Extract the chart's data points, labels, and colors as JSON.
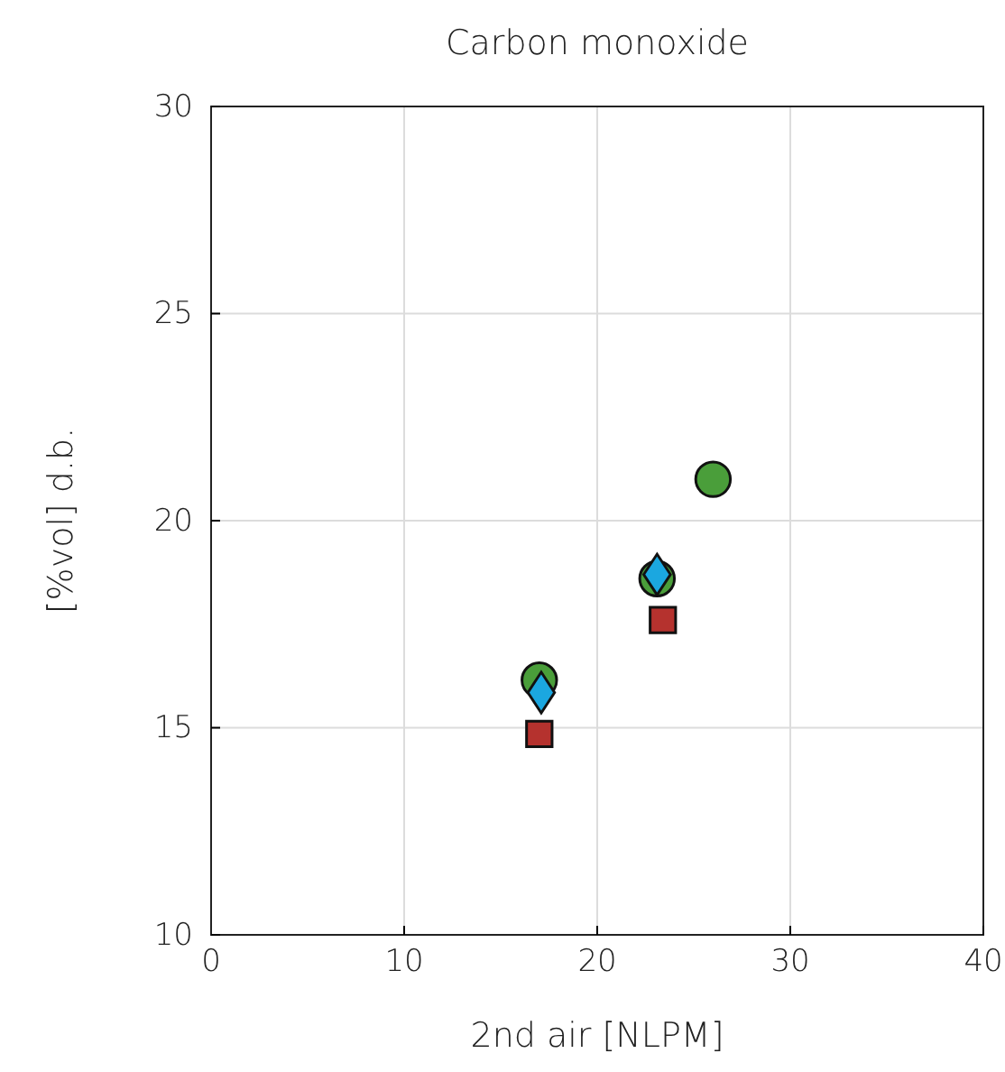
{
  "chart_data": {
    "type": "scatter",
    "title": "Carbon monoxide",
    "xlabel": "2nd air [NLPM]",
    "ylabel": "[%vol] d.b.",
    "xlim": [
      0,
      40
    ],
    "xticks": [
      0,
      10,
      20,
      30,
      40
    ],
    "ylim": [
      10,
      30
    ],
    "yticks": [
      10,
      15,
      20,
      25,
      30
    ],
    "grid": true,
    "series": [
      {
        "color": "#4a9e3a",
        "marker": "circle",
        "x": [
          17.0,
          23.1,
          26.0
        ],
        "values": [
          16.15,
          18.6,
          21.0
        ]
      },
      {
        "color": "#1ba7e0",
        "marker": "diamond",
        "x": [
          17.1,
          23.1
        ],
        "values": [
          15.85,
          18.7
        ]
      },
      {
        "color": "#b5322e",
        "marker": "square",
        "x": [
          17.0,
          23.4
        ],
        "values": [
          14.85,
          17.6
        ]
      }
    ]
  }
}
